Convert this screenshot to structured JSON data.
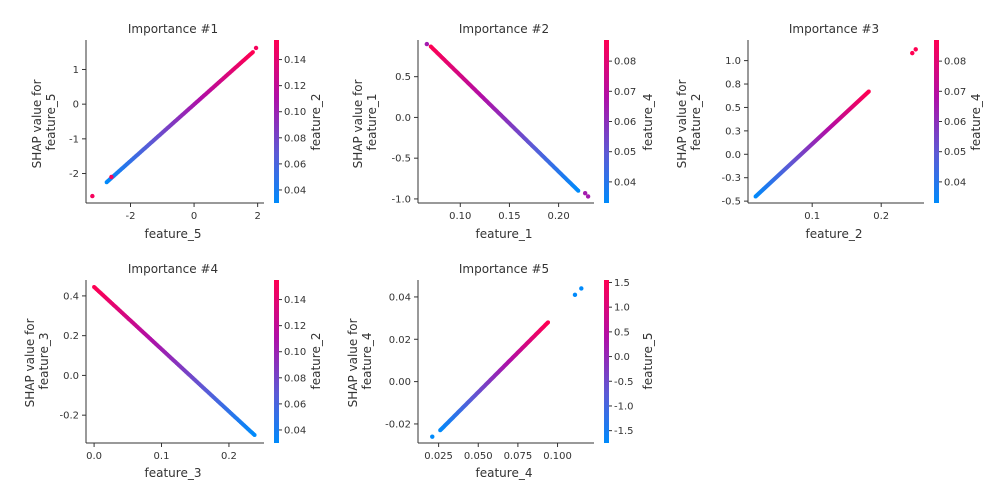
{
  "chart_data": [
    {
      "type": "scatter",
      "title": "Importance #1",
      "xlabel": "feature_5",
      "ylabel": "SHAP value for\nfeature_5",
      "colorbar_label": "feature_2",
      "xlim": [
        -3.4,
        2.2
      ],
      "ylim": [
        -2.85,
        1.85
      ],
      "xticks": [
        -2,
        0,
        2
      ],
      "yticks": [
        -2,
        -1,
        0,
        1
      ],
      "clim": [
        0.03,
        0.155
      ],
      "cticks": [
        0.04,
        0.06,
        0.08,
        0.1,
        0.12,
        0.14
      ],
      "trend": {
        "x": [
          -2.75,
          1.85
        ],
        "y": [
          -2.25,
          1.5
        ]
      },
      "points": [
        {
          "x": -3.2,
          "y": -2.65,
          "c": 0.15
        },
        {
          "x": -2.6,
          "y": -2.1,
          "c": 0.15
        },
        {
          "x": 1.95,
          "y": 1.62,
          "c": 0.15
        }
      ]
    },
    {
      "type": "scatter",
      "title": "Importance #2",
      "xlabel": "feature_1",
      "ylabel": "SHAP value for\nfeature_1",
      "colorbar_label": "feature_4",
      "xlim": [
        0.057,
        0.236
      ],
      "ylim": [
        -1.05,
        0.95
      ],
      "xticks": [
        0.1,
        0.15,
        0.2
      ],
      "yticks": [
        -1.0,
        -0.5,
        0.0,
        0.5
      ],
      "clim": [
        0.033,
        0.087
      ],
      "cticks": [
        0.04,
        0.05,
        0.06,
        0.07,
        0.08
      ],
      "trend": {
        "x": [
          0.07,
          0.22
        ],
        "y": [
          0.87,
          -0.9
        ]
      },
      "points": [
        {
          "x": 0.066,
          "y": 0.9,
          "c": 0.065
        },
        {
          "x": 0.227,
          "y": -0.93,
          "c": 0.065
        },
        {
          "x": 0.23,
          "y": -0.97,
          "c": 0.065
        }
      ]
    },
    {
      "type": "scatter",
      "title": "Importance #3",
      "xlabel": "feature_2",
      "ylabel": "SHAP value for\nfeature_2",
      "colorbar_label": "feature_4",
      "xlim": [
        0.007,
        0.262
      ],
      "ylim": [
        -0.52,
        1.22
      ],
      "xticks": [
        0.1,
        0.2
      ],
      "yticks": [
        -0.5,
        -0.25,
        0.0,
        0.25,
        0.5,
        0.75,
        1.0
      ],
      "clim": [
        0.033,
        0.087
      ],
      "cticks": [
        0.04,
        0.05,
        0.06,
        0.07,
        0.08
      ],
      "trend": {
        "x": [
          0.018,
          0.182
        ],
        "y": [
          -0.45,
          0.67
        ]
      },
      "points": [
        {
          "x": 0.245,
          "y": 1.08,
          "c": 0.087
        },
        {
          "x": 0.25,
          "y": 1.12,
          "c": 0.087
        }
      ]
    },
    {
      "type": "scatter",
      "title": "Importance #4",
      "xlabel": "feature_3",
      "ylabel": "SHAP value for\nfeature_3",
      "colorbar_label": "feature_2",
      "xlim": [
        -0.012,
        0.252
      ],
      "ylim": [
        -0.34,
        0.48
      ],
      "xticks": [
        0.0,
        0.1,
        0.2
      ],
      "yticks": [
        -0.2,
        0.0,
        0.2,
        0.4
      ],
      "clim": [
        0.03,
        0.155
      ],
      "cticks": [
        0.04,
        0.06,
        0.08,
        0.1,
        0.12,
        0.14
      ],
      "trend": {
        "x": [
          0.0,
          0.238
        ],
        "y": [
          0.445,
          -0.3
        ]
      },
      "points": []
    },
    {
      "type": "scatter",
      "title": "Importance #5",
      "xlabel": "feature_4",
      "ylabel": "SHAP value for\nfeature_4",
      "colorbar_label": "feature_5",
      "xlim": [
        0.012,
        0.123
      ],
      "ylim": [
        -0.029,
        0.048
      ],
      "xticks": [
        0.025,
        0.05,
        0.075,
        0.1
      ],
      "xticklabels": [
        "0.025",
        "0.050",
        "0.075",
        "0.100"
      ],
      "yticks": [
        -0.02,
        0.0,
        0.02,
        0.04
      ],
      "clim": [
        -1.75,
        1.55
      ],
      "cticks": [
        -1.5,
        -1.0,
        -0.5,
        0.0,
        0.5,
        1.0,
        1.5
      ],
      "trend": {
        "x": [
          0.026,
          0.094
        ],
        "y": [
          -0.023,
          0.028
        ]
      },
      "points": [
        {
          "x": 0.021,
          "y": -0.026,
          "c": -1.75
        },
        {
          "x": 0.111,
          "y": 0.041,
          "c": -1.75
        },
        {
          "x": 0.115,
          "y": 0.044,
          "c": -1.75
        }
      ]
    }
  ]
}
